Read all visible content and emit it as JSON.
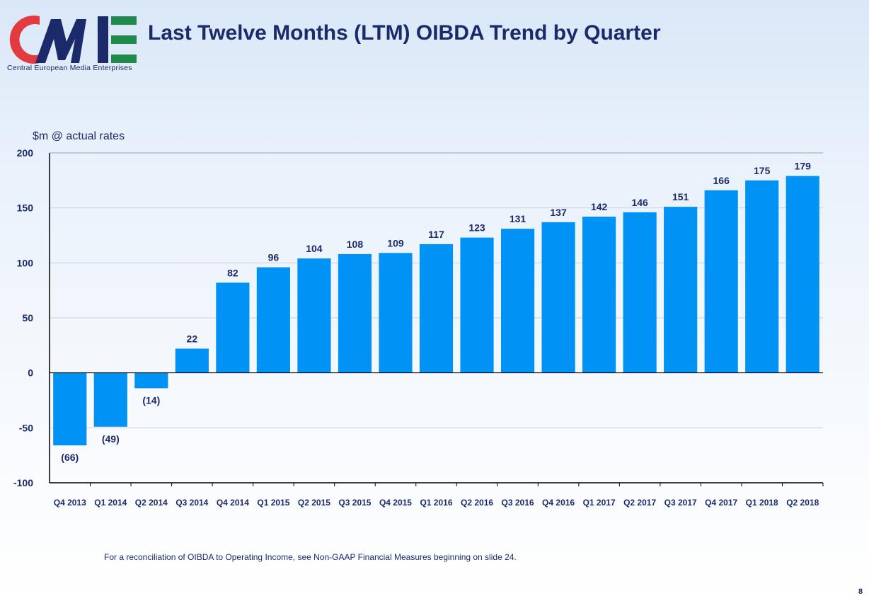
{
  "header": {
    "logo_text": "CME",
    "tagline": "Central European Media Enterprises",
    "title": "Last Twelve Months (LTM) OIBDA Trend by Quarter"
  },
  "chart_data": {
    "type": "bar",
    "title": "",
    "ylabel": "$m @ actual rates",
    "xlabel": "",
    "ylim": [
      -100,
      200
    ],
    "yticks": [
      200,
      150,
      100,
      50,
      0,
      -50,
      -100
    ],
    "grid": true,
    "bar_color": "#0093f5",
    "categories": [
      "Q4 2013",
      "Q1 2014",
      "Q2 2014",
      "Q3 2014",
      "Q4 2014",
      "Q1 2015",
      "Q2 2015",
      "Q3 2015",
      "Q4 2015",
      "Q1 2016",
      "Q2 2016",
      "Q3 2016",
      "Q4 2016",
      "Q1 2017",
      "Q2 2017",
      "Q3 2017",
      "Q4 2017",
      "Q1 2018",
      "Q2 2018"
    ],
    "values": [
      -66,
      -49,
      -14,
      22,
      82,
      96,
      104,
      108,
      109,
      117,
      123,
      131,
      137,
      142,
      146,
      151,
      166,
      175,
      179
    ],
    "data_labels": [
      "(66)",
      "(49)",
      "(14)",
      "22",
      "82",
      "96",
      "104",
      "108",
      "109",
      "117",
      "123",
      "131",
      "137",
      "142",
      "146",
      "151",
      "166",
      "175",
      "179"
    ]
  },
  "footnote": "For a reconciliation of OIBDA to Operating Income, see Non-GAAP Financial Measures beginning on slide 24.",
  "page_number": "8",
  "colors": {
    "brand_navy": "#1b2a6b",
    "brand_red": "#e23a3f",
    "brand_green": "#1f8a4c",
    "bar": "#0093f5"
  }
}
